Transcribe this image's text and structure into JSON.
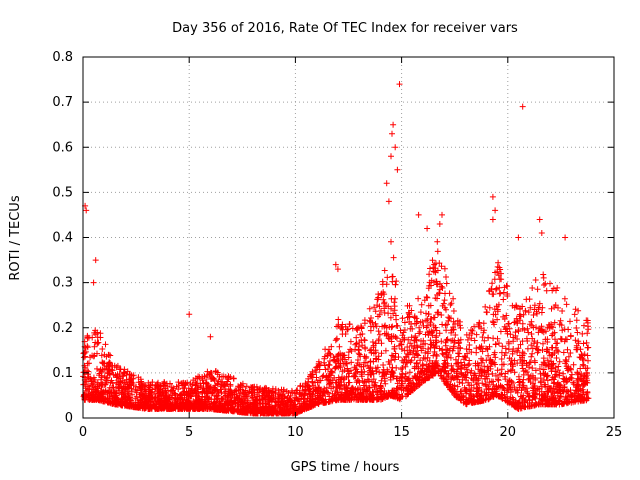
{
  "chart_data": {
    "type": "scatter",
    "title": "Day 356 of 2016, Rate Of TEC Index for receiver vars",
    "xlabel": "GPS time / hours",
    "ylabel": "ROTI / TECUs",
    "xlim": [
      0,
      25
    ],
    "ylim": [
      0,
      0.8
    ],
    "xticks": [
      0,
      5,
      10,
      15,
      20,
      25
    ],
    "yticks": [
      0,
      0.1,
      0.2,
      0.3,
      0.4,
      0.5,
      0.6,
      0.7,
      0.8
    ],
    "grid": true,
    "marker": "+",
    "color": "#ff0000",
    "series": [
      {
        "name": "ROTI",
        "x_range": [
          0,
          23.8
        ],
        "profile": [
          {
            "x": 0.0,
            "base": 0.04,
            "spread": 0.16
          },
          {
            "x": 0.7,
            "base": 0.04,
            "spread": 0.16
          },
          {
            "x": 1.5,
            "base": 0.03,
            "spread": 0.09
          },
          {
            "x": 3.0,
            "base": 0.02,
            "spread": 0.06
          },
          {
            "x": 5.0,
            "base": 0.02,
            "spread": 0.06
          },
          {
            "x": 6.0,
            "base": 0.02,
            "spread": 0.09
          },
          {
            "x": 8.0,
            "base": 0.01,
            "spread": 0.06
          },
          {
            "x": 10.0,
            "base": 0.01,
            "spread": 0.05
          },
          {
            "x": 11.0,
            "base": 0.03,
            "spread": 0.09
          },
          {
            "x": 12.0,
            "base": 0.04,
            "spread": 0.18
          },
          {
            "x": 13.0,
            "base": 0.04,
            "spread": 0.16
          },
          {
            "x": 14.0,
            "base": 0.04,
            "spread": 0.25
          },
          {
            "x": 14.5,
            "base": 0.05,
            "spread": 0.35
          },
          {
            "x": 15.0,
            "base": 0.04,
            "spread": 0.2
          },
          {
            "x": 16.0,
            "base": 0.08,
            "spread": 0.2
          },
          {
            "x": 16.7,
            "base": 0.1,
            "spread": 0.3
          },
          {
            "x": 17.5,
            "base": 0.05,
            "spread": 0.2
          },
          {
            "x": 18.0,
            "base": 0.03,
            "spread": 0.15
          },
          {
            "x": 19.0,
            "base": 0.04,
            "spread": 0.22
          },
          {
            "x": 19.5,
            "base": 0.05,
            "spread": 0.3
          },
          {
            "x": 20.5,
            "base": 0.02,
            "spread": 0.22
          },
          {
            "x": 21.5,
            "base": 0.03,
            "spread": 0.3
          },
          {
            "x": 22.5,
            "base": 0.03,
            "spread": 0.25
          },
          {
            "x": 23.8,
            "base": 0.04,
            "spread": 0.18
          }
        ],
        "outliers": [
          {
            "x": 0.1,
            "y": 0.47
          },
          {
            "x": 0.15,
            "y": 0.46
          },
          {
            "x": 0.6,
            "y": 0.35
          },
          {
            "x": 0.5,
            "y": 0.3
          },
          {
            "x": 5.0,
            "y": 0.23
          },
          {
            "x": 6.0,
            "y": 0.18
          },
          {
            "x": 14.9,
            "y": 0.74
          },
          {
            "x": 14.6,
            "y": 0.65
          },
          {
            "x": 14.55,
            "y": 0.63
          },
          {
            "x": 14.7,
            "y": 0.6
          },
          {
            "x": 14.5,
            "y": 0.58
          },
          {
            "x": 14.8,
            "y": 0.55
          },
          {
            "x": 14.3,
            "y": 0.52
          },
          {
            "x": 14.4,
            "y": 0.48
          },
          {
            "x": 15.8,
            "y": 0.45
          },
          {
            "x": 16.9,
            "y": 0.45
          },
          {
            "x": 16.8,
            "y": 0.43
          },
          {
            "x": 16.2,
            "y": 0.42
          },
          {
            "x": 19.3,
            "y": 0.49
          },
          {
            "x": 19.4,
            "y": 0.46
          },
          {
            "x": 19.3,
            "y": 0.44
          },
          {
            "x": 20.7,
            "y": 0.69
          },
          {
            "x": 21.5,
            "y": 0.44
          },
          {
            "x": 21.6,
            "y": 0.41
          },
          {
            "x": 20.5,
            "y": 0.4
          },
          {
            "x": 22.7,
            "y": 0.4
          },
          {
            "x": 11.9,
            "y": 0.34
          },
          {
            "x": 12.0,
            "y": 0.33
          }
        ]
      }
    ]
  }
}
